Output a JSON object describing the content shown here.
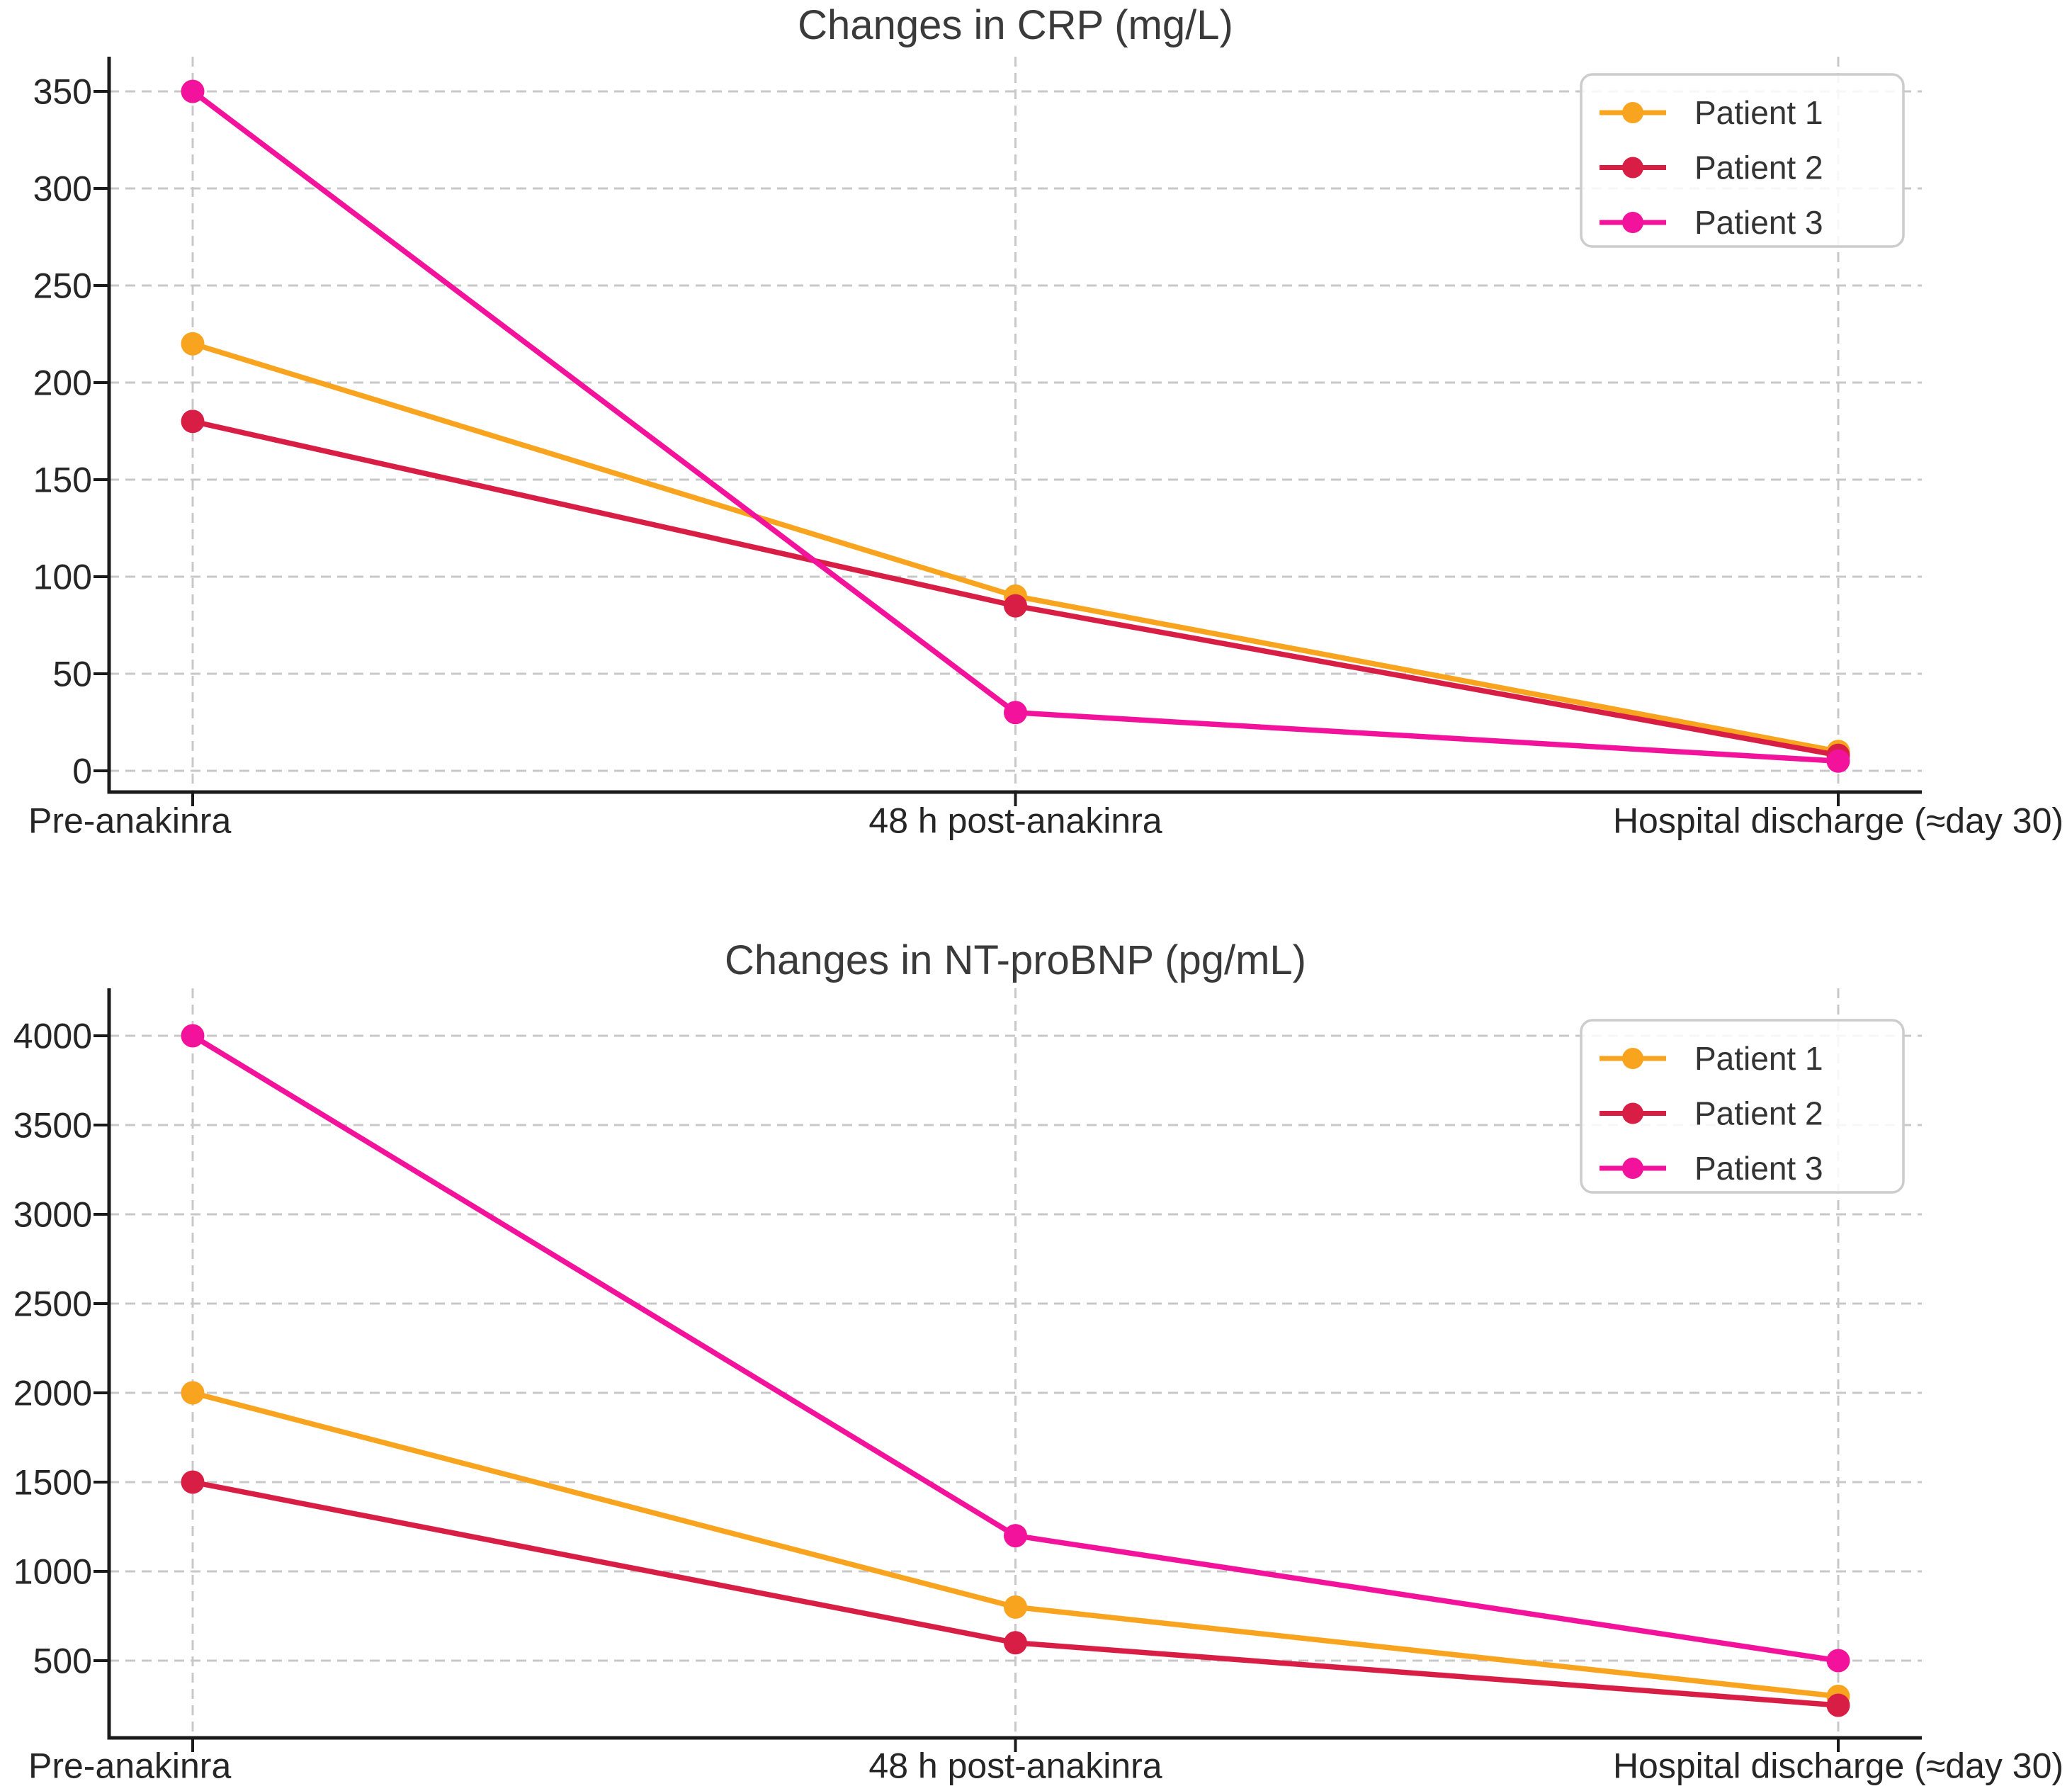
{
  "figure": {
    "background": "#ffffff",
    "grid_color": "#c8c8c8",
    "axis_color": "#1a1a1a",
    "text_color": "#262626",
    "legend_border_color": "#cccccc"
  },
  "chart_data": [
    {
      "type": "line",
      "title": "Changes in CRP (mg/L)",
      "categories": [
        "Pre-anakinra",
        "48 h post-anakinra",
        "Hospital discharge (≈day 30)"
      ],
      "yticks": [
        0,
        50,
        100,
        150,
        200,
        250,
        300,
        350
      ],
      "ylim": [
        0,
        350
      ],
      "grid": true,
      "legend_position": "upper right",
      "marker": "circle",
      "series": [
        {
          "name": "Patient 1",
          "color": "#F9A41F",
          "values": [
            220,
            90,
            10
          ]
        },
        {
          "name": "Patient 2",
          "color": "#D91E46",
          "values": [
            180,
            85,
            8
          ]
        },
        {
          "name": "Patient 3",
          "color": "#F2129B",
          "values": [
            350,
            30,
            5
          ]
        }
      ]
    },
    {
      "type": "line",
      "title": "Changes in NT-proBNP (pg/mL)",
      "categories": [
        "Pre-anakinra",
        "48 h post-anakinra",
        "Hospital discharge (≈day 30)"
      ],
      "yticks": [
        500,
        1000,
        1500,
        2000,
        2500,
        3000,
        3500,
        4000
      ],
      "ylim": [
        250,
        4000
      ],
      "grid": true,
      "legend_position": "upper right",
      "marker": "circle",
      "series": [
        {
          "name": "Patient 1",
          "color": "#F9A41F",
          "values": [
            2000,
            800,
            300
          ]
        },
        {
          "name": "Patient 2",
          "color": "#D91E46",
          "values": [
            1500,
            600,
            250
          ]
        },
        {
          "name": "Patient 3",
          "color": "#F2129B",
          "values": [
            4000,
            1200,
            500
          ]
        }
      ]
    }
  ]
}
